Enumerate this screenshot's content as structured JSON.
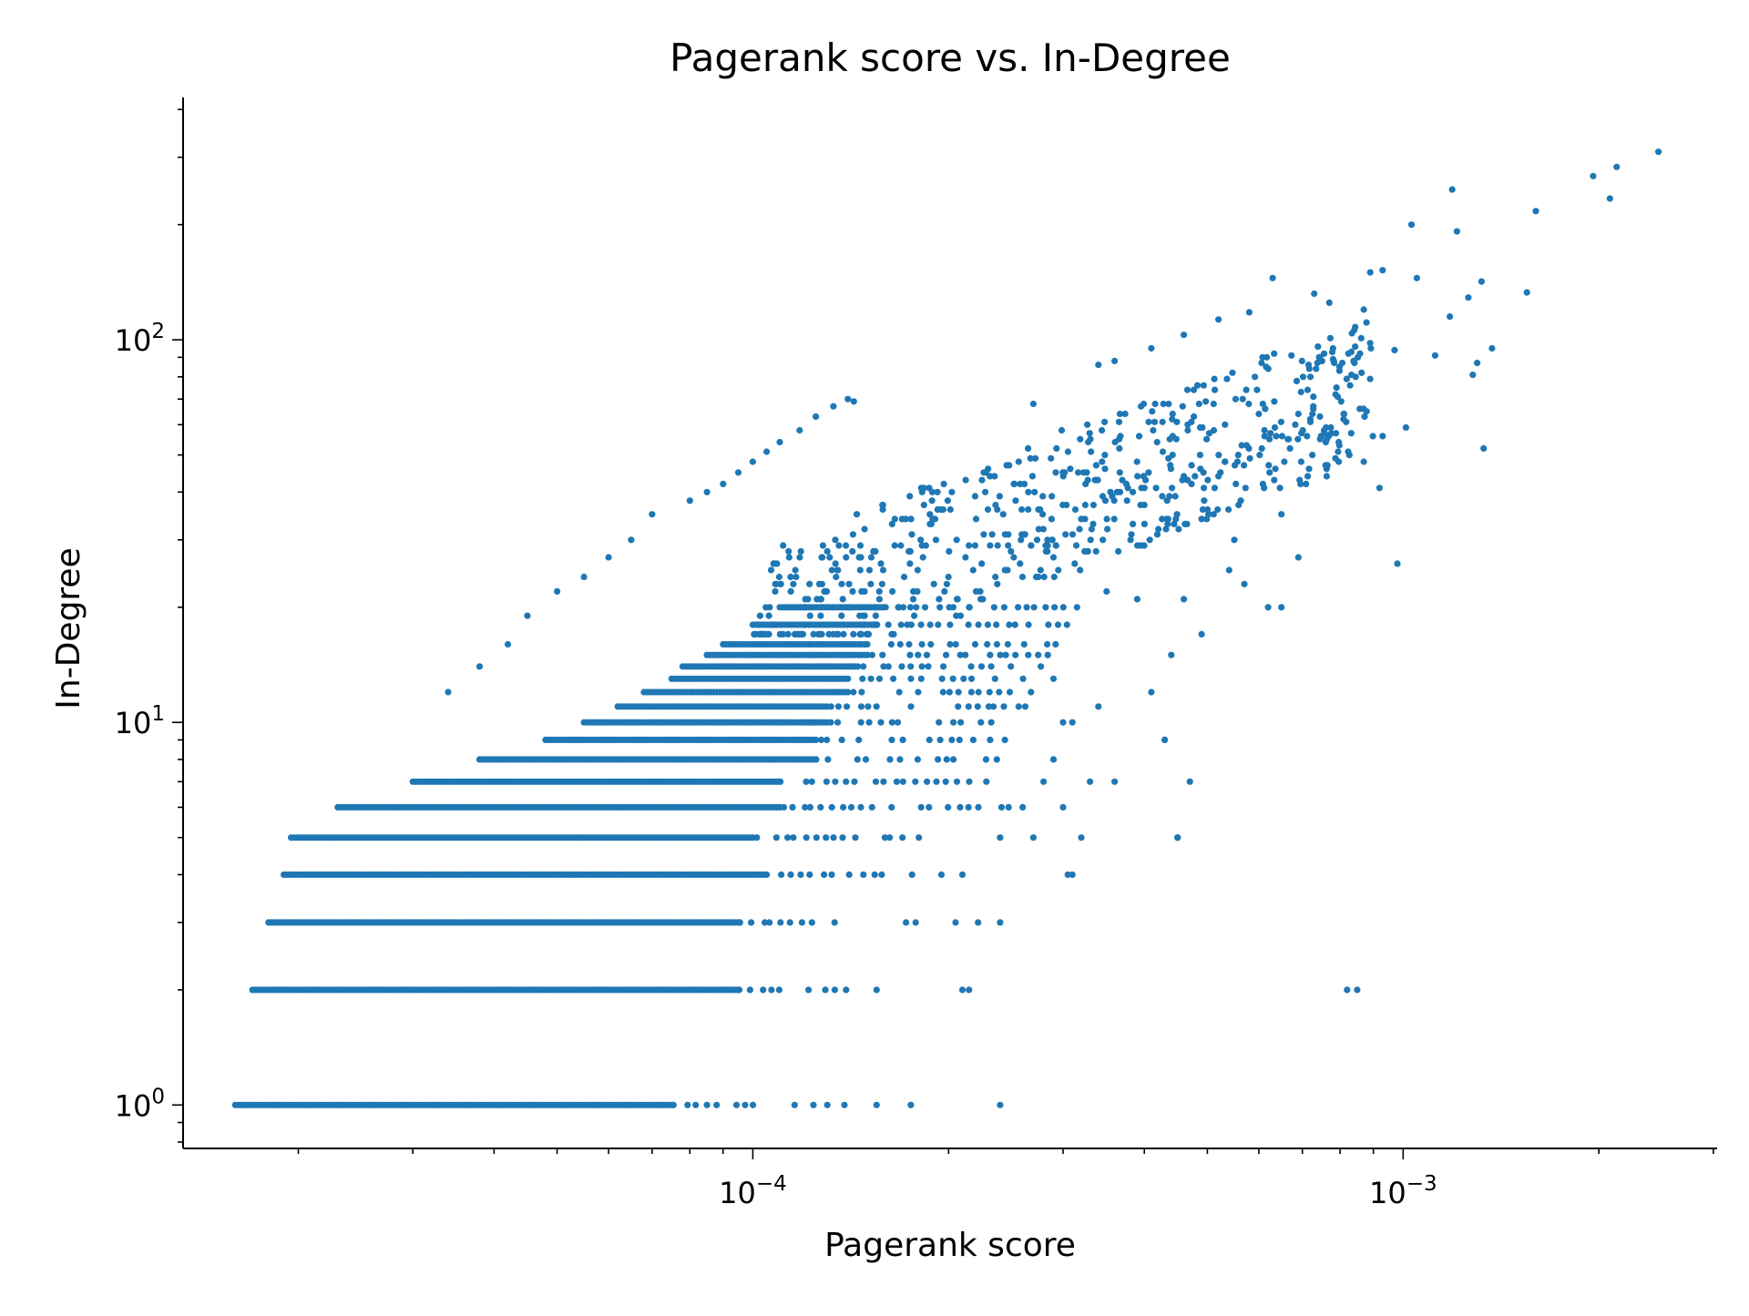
{
  "chart_data": {
    "type": "scatter",
    "title": "Pagerank score vs. In-Degree",
    "xlabel": "Pagerank score",
    "ylabel": "In-Degree",
    "xscale": "log",
    "yscale": "log",
    "xlim": [
      1.33e-05,
      0.00304
    ],
    "ylim": [
      0.77,
      430
    ],
    "grid": false,
    "x_major_ticks": [
      {
        "value": 0.0001,
        "base": "10",
        "exp": "−4"
      },
      {
        "value": 0.001,
        "base": "10",
        "exp": "−3"
      }
    ],
    "y_major_ticks": [
      {
        "value": 1,
        "base": "10",
        "exp": "0"
      },
      {
        "value": 10,
        "base": "10",
        "exp": "1"
      },
      {
        "value": 100,
        "base": "10",
        "exp": "2"
      }
    ],
    "color": "#1f77b4",
    "bands": [
      {
        "y": 1,
        "dense": [
          1.6e-05,
          7.5e-05
        ],
        "sparse": [
          7.5e-05,
          0.000142
        ],
        "extra": [
          0.000155,
          0.000175,
          0.00024
        ]
      },
      {
        "y": 2,
        "dense": [
          1.7e-05,
          9.5e-05
        ],
        "sparse": [
          9.5e-05,
          0.000138
        ],
        "extra": [
          0.000155,
          0.000215,
          0.00085
        ]
      },
      {
        "y": 3,
        "dense": [
          1.8e-05,
          9.5e-05
        ],
        "sparse": [
          9.5e-05,
          0.000132
        ],
        "extra": [
          0.000172,
          0.000178,
          0.000205,
          0.000222,
          0.00024
        ]
      },
      {
        "y": 4,
        "dense": [
          1.9e-05,
          0.000105
        ],
        "sparse": [
          0.000105,
          0.000175
        ],
        "extra": [
          0.000195,
          0.00021,
          0.000305
        ]
      },
      {
        "y": 5,
        "dense": [
          1.95e-05,
          0.0001
        ],
        "sparse": [
          0.0001,
          0.000168
        ],
        "extra": [
          0.00018,
          0.00024,
          0.00045
        ]
      },
      {
        "y": 6,
        "dense": [
          2.3e-05,
          0.00011
        ],
        "sparse": [
          0.00011,
          0.000255
        ],
        "extra": [
          0.0003
        ]
      },
      {
        "y": 7,
        "dense": [
          3e-05,
          0.00011
        ],
        "sparse": [
          0.00011,
          0.000235
        ],
        "extra": [
          0.00028,
          0.00033,
          0.00047
        ]
      },
      {
        "y": 8,
        "dense": [
          3.8e-05,
          0.000125
        ],
        "sparse": [
          0.000125,
          0.00025
        ],
        "extra": [
          0.00029
        ]
      },
      {
        "y": 9,
        "dense": [
          4.8e-05,
          0.000125
        ],
        "sparse": [
          0.000125,
          0.00024
        ],
        "extra": [
          0.00043
        ]
      },
      {
        "y": 10,
        "dense": [
          5.5e-05,
          0.00013
        ],
        "sparse": [
          0.00013,
          0.00023
        ],
        "extra": [
          0.0003
        ]
      },
      {
        "y": 11,
        "dense": [
          6.2e-05,
          0.00013
        ],
        "sparse": [
          0.00013,
          0.00026
        ],
        "extra": [
          0.00034
        ]
      },
      {
        "y": 12,
        "dense": [
          6.8e-05,
          0.00014
        ],
        "sparse": [
          0.00014,
          0.000265
        ],
        "extra": []
      },
      {
        "y": 13,
        "dense": [
          7.5e-05,
          0.00014
        ],
        "sparse": [
          0.00014,
          0.00026
        ],
        "extra": []
      },
      {
        "y": 14,
        "dense": [
          7.8e-05,
          0.000145
        ],
        "sparse": [
          0.000145,
          0.000275
        ],
        "extra": []
      },
      {
        "y": 15,
        "dense": [
          8.5e-05,
          0.00015
        ],
        "sparse": [
          0.00015,
          0.00028
        ],
        "extra": []
      },
      {
        "y": 16,
        "dense": [
          9e-05,
          0.00015
        ],
        "sparse": [
          0.00015,
          0.00029
        ],
        "extra": []
      },
      {
        "y": 18,
        "dense": [
          0.0001,
          0.000155
        ],
        "sparse": [
          0.000155,
          0.0003
        ],
        "extra": []
      },
      {
        "y": 20,
        "dense": [
          0.00011,
          0.00016
        ],
        "sparse": [
          0.00016,
          0.00032
        ],
        "extra": [
          0.00065
        ]
      }
    ],
    "outlier_points": [
      {
        "x": 8e-05,
        "y": 38
      },
      {
        "x": 8.5e-05,
        "y": 40
      },
      {
        "x": 9e-05,
        "y": 42
      },
      {
        "x": 9.5e-05,
        "y": 45
      },
      {
        "x": 0.0001,
        "y": 48
      },
      {
        "x": 0.000105,
        "y": 51
      },
      {
        "x": 0.00011,
        "y": 54
      },
      {
        "x": 0.000118,
        "y": 58
      },
      {
        "x": 0.000125,
        "y": 63
      },
      {
        "x": 0.000133,
        "y": 67
      },
      {
        "x": 0.00014,
        "y": 70
      },
      {
        "x": 0.000143,
        "y": 69
      },
      {
        "x": 7e-05,
        "y": 35
      },
      {
        "x": 6.5e-05,
        "y": 30
      },
      {
        "x": 6e-05,
        "y": 27
      },
      {
        "x": 5.5e-05,
        "y": 24
      },
      {
        "x": 5e-05,
        "y": 22
      },
      {
        "x": 4.5e-05,
        "y": 19
      },
      {
        "x": 4.2e-05,
        "y": 16
      },
      {
        "x": 3.8e-05,
        "y": 14
      },
      {
        "x": 3.4e-05,
        "y": 12
      },
      {
        "x": 0.00029,
        "y": 13
      },
      {
        "x": 0.00031,
        "y": 10
      },
      {
        "x": 0.00027,
        "y": 68
      },
      {
        "x": 0.00034,
        "y": 86
      },
      {
        "x": 0.00036,
        "y": 88
      },
      {
        "x": 0.00041,
        "y": 95
      },
      {
        "x": 0.00046,
        "y": 103
      },
      {
        "x": 0.00052,
        "y": 113
      },
      {
        "x": 0.00058,
        "y": 118
      },
      {
        "x": 0.00063,
        "y": 145
      },
      {
        "x": 0.00073,
        "y": 132
      },
      {
        "x": 0.00077,
        "y": 125
      },
      {
        "x": 0.00089,
        "y": 150
      },
      {
        "x": 0.00093,
        "y": 152
      },
      {
        "x": 0.00103,
        "y": 200
      },
      {
        "x": 0.00105,
        "y": 145
      },
      {
        "x": 0.00119,
        "y": 247
      },
      {
        "x": 0.00121,
        "y": 192
      },
      {
        "x": 0.00132,
        "y": 142
      },
      {
        "x": 0.00155,
        "y": 133
      },
      {
        "x": 0.0016,
        "y": 217
      },
      {
        "x": 0.00196,
        "y": 268
      },
      {
        "x": 0.00208,
        "y": 234
      },
      {
        "x": 0.00213,
        "y": 283
      },
      {
        "x": 0.00247,
        "y": 310
      },
      {
        "x": 0.0013,
        "y": 87
      },
      {
        "x": 0.00128,
        "y": 81
      },
      {
        "x": 0.00137,
        "y": 95
      },
      {
        "x": 0.00112,
        "y": 91
      },
      {
        "x": 0.00101,
        "y": 59
      },
      {
        "x": 0.00097,
        "y": 94
      },
      {
        "x": 0.00092,
        "y": 41
      },
      {
        "x": 0.00093,
        "y": 56
      },
      {
        "x": 0.00133,
        "y": 52
      },
      {
        "x": 0.00098,
        "y": 26
      },
      {
        "x": 0.00081,
        "y": 64
      },
      {
        "x": 0.00076,
        "y": 47
      },
      {
        "x": 0.00069,
        "y": 27
      },
      {
        "x": 0.00065,
        "y": 35
      },
      {
        "x": 0.00062,
        "y": 20
      },
      {
        "x": 0.00057,
        "y": 23
      },
      {
        "x": 0.00054,
        "y": 25
      },
      {
        "x": 0.00049,
        "y": 17
      },
      {
        "x": 0.00046,
        "y": 21
      },
      {
        "x": 0.00044,
        "y": 15
      },
      {
        "x": 0.00043,
        "y": 9
      },
      {
        "x": 0.00045,
        "y": 5
      },
      {
        "x": 0.00041,
        "y": 12
      },
      {
        "x": 0.00036,
        "y": 7
      },
      {
        "x": 0.00032,
        "y": 5
      },
      {
        "x": 0.00031,
        "y": 4
      },
      {
        "x": 0.00027,
        "y": 5
      },
      {
        "x": 0.00021,
        "y": 2
      },
      {
        "x": 0.00082,
        "y": 2
      },
      {
        "x": 0.00039,
        "y": 21
      },
      {
        "x": 0.00035,
        "y": 22
      },
      {
        "x": 0.00055,
        "y": 30
      },
      {
        "x": 0.0006,
        "y": 64
      },
      {
        "x": 0.00067,
        "y": 52
      },
      {
        "x": 0.00072,
        "y": 61
      },
      {
        "x": 0.00079,
        "y": 75
      },
      {
        "x": 0.00087,
        "y": 120
      },
      {
        "x": 0.00118,
        "y": 115
      },
      {
        "x": 0.00126,
        "y": 129
      }
    ],
    "scattered_cloud": {
      "xrange": [
        0.0001,
        0.0009
      ],
      "yrange": [
        17,
        75
      ],
      "count": 620
    }
  }
}
